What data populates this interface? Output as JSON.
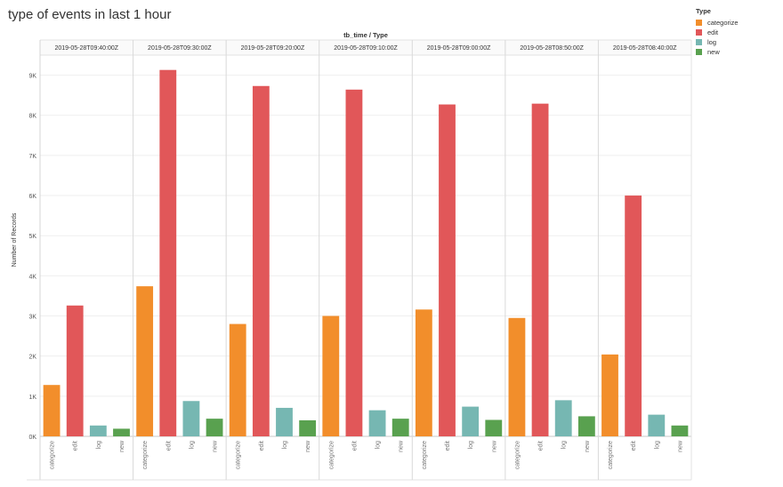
{
  "page": {
    "title": "type of events in last 1 hour"
  },
  "legend": {
    "title": "Type",
    "items": [
      {
        "label": "categorize",
        "color": "#f28e2b"
      },
      {
        "label": "edit",
        "color": "#e15759"
      },
      {
        "label": "log",
        "color": "#76b7b2"
      },
      {
        "label": "new",
        "color": "#59a14f"
      }
    ]
  },
  "chart_data": {
    "type": "bar",
    "title": "",
    "xlabel": "tb_time / Type",
    "ylabel": "Number of Records",
    "ylim": [
      0,
      9500
    ],
    "yticks": [
      0,
      1000,
      2000,
      3000,
      4000,
      5000,
      6000,
      7000,
      8000,
      9000
    ],
    "ytick_labels": [
      "0K",
      "1K",
      "2K",
      "3K",
      "4K",
      "5K",
      "6K",
      "7K",
      "8K",
      "9K"
    ],
    "grid": true,
    "legend_position": "top-right",
    "categories": [
      "categorize",
      "edit",
      "log",
      "new"
    ],
    "colors": [
      "#f28e2b",
      "#e15759",
      "#76b7b2",
      "#59a14f"
    ],
    "groups": [
      {
        "name": "2019-05-28T09:40:00Z",
        "values": [
          1280,
          3260,
          270,
          190
        ]
      },
      {
        "name": "2019-05-28T09:30:00Z",
        "values": [
          3740,
          9130,
          880,
          440
        ]
      },
      {
        "name": "2019-05-28T09:20:00Z",
        "values": [
          2800,
          8730,
          710,
          400
        ]
      },
      {
        "name": "2019-05-28T09:10:00Z",
        "values": [
          3000,
          8640,
          650,
          440
        ]
      },
      {
        "name": "2019-05-28T09:00:00Z",
        "values": [
          3160,
          8270,
          740,
          410
        ]
      },
      {
        "name": "2019-05-28T08:50:00Z",
        "values": [
          2950,
          8290,
          900,
          500
        ]
      },
      {
        "name": "2019-05-28T08:40:00Z",
        "values": [
          2040,
          6000,
          540,
          270
        ]
      }
    ]
  }
}
